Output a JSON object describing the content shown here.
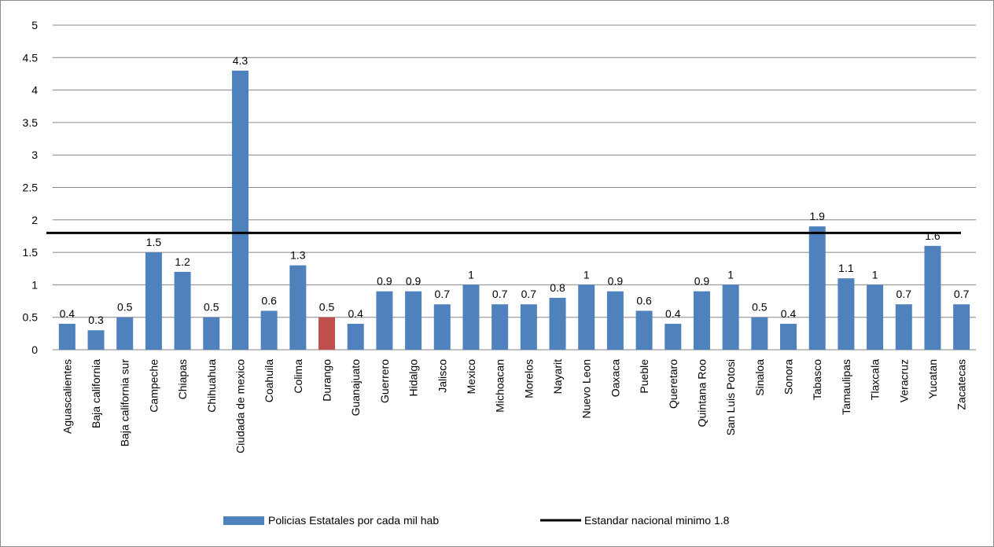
{
  "chart_data": {
    "type": "bar",
    "title": "",
    "xlabel": "",
    "ylabel": "",
    "ylim": [
      0,
      5
    ],
    "ytick_step": 0.5,
    "yticks": [
      "0",
      "0.5",
      "1",
      "1.5",
      "2",
      "2.5",
      "3",
      "3.5",
      "4",
      "4.5",
      "5"
    ],
    "grid": true,
    "legend_position": "bottom",
    "categories": [
      "Aguascalientes",
      "Baja california",
      "Baja california sur",
      "Campeche",
      "Chiapas",
      "Chihuahua",
      "Ciudada de mexico",
      "Coahuila",
      "Colima",
      "Durango",
      "Guanajuato",
      "Guerrero",
      "Hidalgo",
      "Jalisco",
      "Mexico",
      "Michoacan",
      "Morelos",
      "Nayarit",
      "Nuevo Leon",
      "Oaxaca",
      "Pueble",
      "Queretaro",
      "Quintana Roo",
      "San Luis Potosi",
      "Sinaloa",
      "Sonora",
      "Tabasco",
      "Tamaulipas",
      "Tlaxcala",
      "Veracruz",
      "Yucatan",
      "Zacatecas"
    ],
    "series": [
      {
        "name": "Policias Estatales por cada mil hab",
        "color": "#4f81bd",
        "highlight": {
          "category": "Durango",
          "color": "#c0504d"
        },
        "values": [
          0.4,
          0.3,
          0.5,
          1.5,
          1.2,
          0.5,
          4.3,
          0.6,
          1.3,
          0.5,
          0.4,
          0.9,
          0.9,
          0.7,
          1,
          0.7,
          0.7,
          0.8,
          1,
          0.9,
          0.6,
          0.4,
          0.9,
          1,
          0.5,
          0.4,
          1.9,
          1.1,
          1,
          0.7,
          1.6,
          0.7
        ],
        "labels": [
          "0.4",
          "0.3",
          "0.5",
          "1.5",
          "1.2",
          "0.5",
          "4.3",
          "0.6",
          "1.3",
          "0.5",
          "0.4",
          "0.9",
          "0.9",
          "0.7",
          "1",
          "0.7",
          "0.7",
          "0.8",
          "1",
          "0.9",
          "0.6",
          "0.4",
          "0.9",
          "1",
          "0.5",
          "0.4",
          "1.9",
          "1.1",
          "1",
          "0.7",
          "1.6",
          "0.7"
        ]
      }
    ],
    "reference_line": {
      "name": "Estandar nacional minimo 1.8",
      "value": 1.8,
      "color": "#000000"
    },
    "gridline_color": "#868686"
  }
}
